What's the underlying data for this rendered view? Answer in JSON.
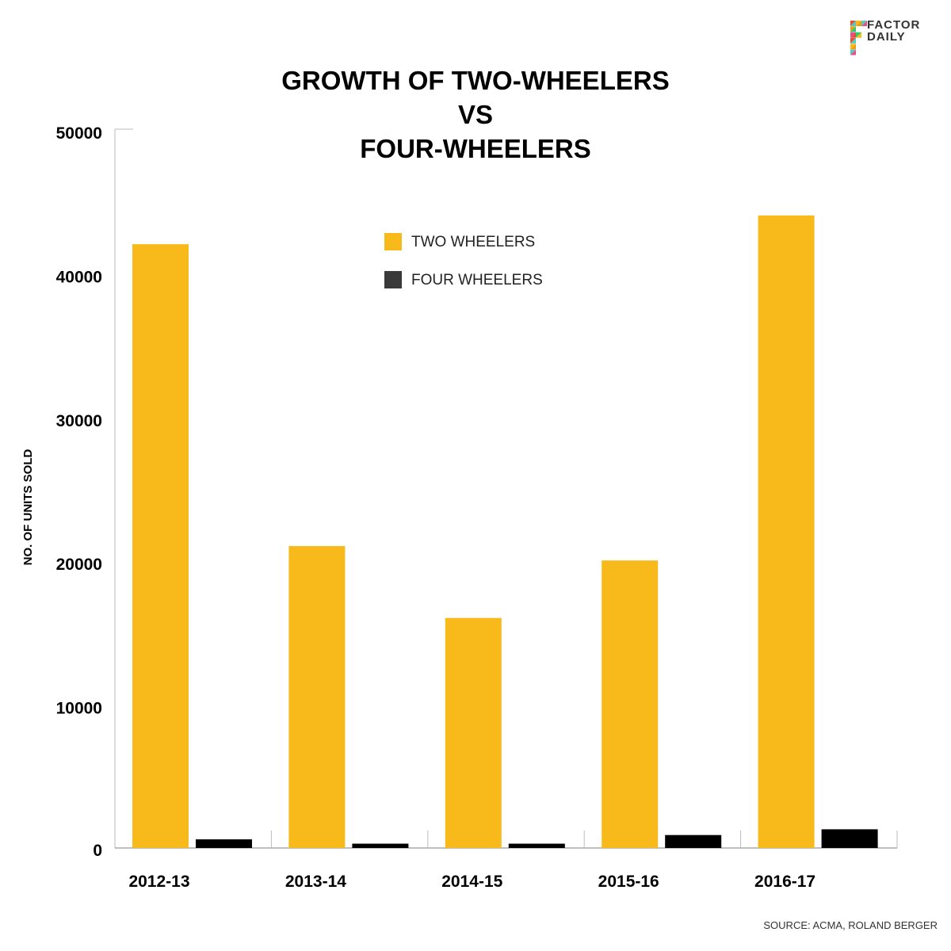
{
  "brand": {
    "line1": "FACTOR",
    "line2": "DAILY"
  },
  "source": "SOURCE: ACMA, ROLAND BERGER",
  "colors": {
    "two_wheelers": "#F7BA1A",
    "four_wheelers": "#000000",
    "legend_four": "#3a3a3a"
  },
  "chart_data": {
    "type": "bar",
    "title": [
      "GROWTH OF TWO-WHEELERS",
      "VS",
      "FOUR-WHEELERS"
    ],
    "xlabel": "",
    "ylabel": "NO. OF UNITS SOLD",
    "ylim": [
      0,
      50000
    ],
    "yticks": [
      0,
      10000,
      20000,
      30000,
      40000,
      50000
    ],
    "categories": [
      "2012-13",
      "2013-14",
      "2014-15",
      "2015-16",
      "2016-17"
    ],
    "series": [
      {
        "name": "TWO WHEELERS",
        "values": [
          42000,
          21000,
          16000,
          20000,
          44000
        ]
      },
      {
        "name": "FOUR WHEELERS",
        "values": [
          600,
          300,
          300,
          900,
          1300
        ]
      }
    ],
    "legend_position": "top-center",
    "grid": false
  }
}
